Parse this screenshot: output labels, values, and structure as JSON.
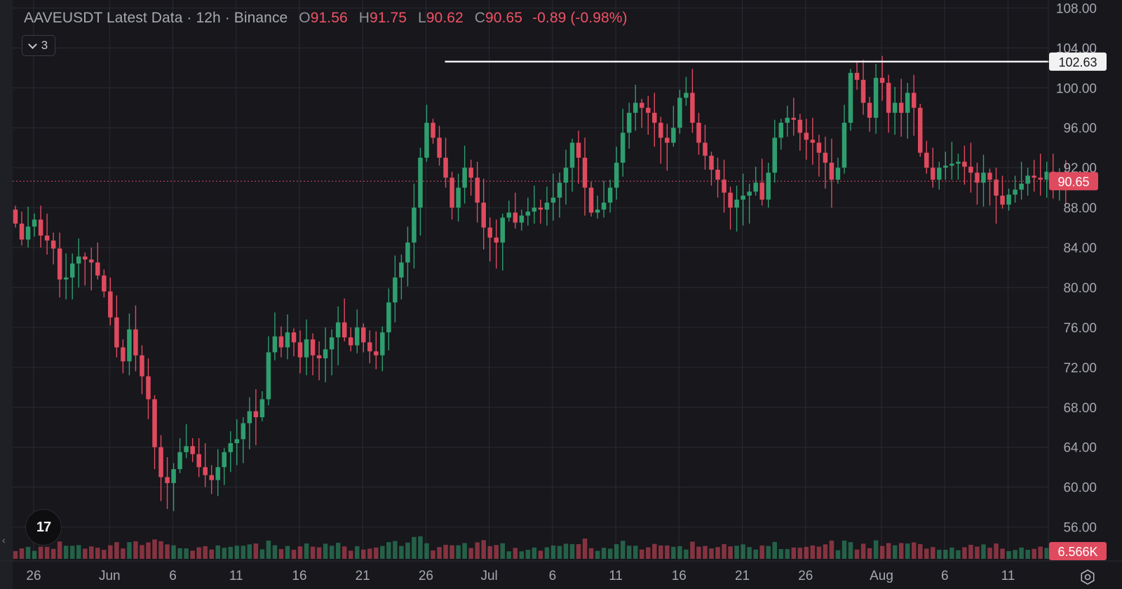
{
  "legend": {
    "symbol": "AAVEUSDT Latest Data · 12h · Binance",
    "o_label": "O",
    "open": "91.56",
    "h_label": "H",
    "high": "91.75",
    "l_label": "L",
    "low": "90.62",
    "c_label": "C",
    "close": "90.65",
    "change": "-0.89 (-0.98%)"
  },
  "indicators_toggle": {
    "count": "3"
  },
  "logo": {
    "text": "17"
  },
  "chart_data": {
    "type": "candlestick",
    "interval": "12h",
    "symbol": "AAVEUSDT",
    "exchange": "Binance",
    "ylim": [
      52.6,
      108.8
    ],
    "y_ticks": [
      "108.00",
      "104.00",
      "100.00",
      "96.00",
      "92.00",
      "88.00",
      "84.00",
      "80.00",
      "76.00",
      "72.00",
      "68.00",
      "64.00",
      "60.00",
      "56.00"
    ],
    "x_ticks": [
      {
        "label": "26",
        "day": 0
      },
      {
        "label": "Jun",
        "day": 6
      },
      {
        "label": "6",
        "day": 11
      },
      {
        "label": "11",
        "day": 16
      },
      {
        "label": "16",
        "day": 21
      },
      {
        "label": "21",
        "day": 26
      },
      {
        "label": "26",
        "day": 31
      },
      {
        "label": "Jul",
        "day": 36
      },
      {
        "label": "6",
        "day": 41
      },
      {
        "label": "11",
        "day": 46
      },
      {
        "label": "16",
        "day": 51
      },
      {
        "label": "21",
        "day": 56
      },
      {
        "label": "26",
        "day": 61
      },
      {
        "label": "Aug",
        "day": 67
      },
      {
        "label": "6",
        "day": 72
      },
      {
        "label": "11",
        "day": 77
      }
    ],
    "resistance_line": {
      "price": 102.63,
      "label": "102.63",
      "from_day": 32.5,
      "to_day": 80.8
    },
    "current_price": {
      "price": 90.65,
      "label": "90.65"
    },
    "volume_label": "6.566K",
    "up_color": "#2f9e6e",
    "down_color": "#e04a5e",
    "closes": [
      86.4,
      84.8,
      86.1,
      86.8,
      85.2,
      84.7,
      83.9,
      80.8,
      81.0,
      82.4,
      83.1,
      82.8,
      82.5,
      81.2,
      79.6,
      77.0,
      74.0,
      72.6,
      75.8,
      73.2,
      71.1,
      68.8,
      64.0,
      61.0,
      60.4,
      61.8,
      63.5,
      64.1,
      63.3,
      62.0,
      61.2,
      60.7,
      62.0,
      63.5,
      64.4,
      64.8,
      66.4,
      67.6,
      67.0,
      68.8,
      73.5,
      75.1,
      74.0,
      75.5,
      74.5,
      73.0,
      74.8,
      73.2,
      72.9,
      73.8,
      75.0,
      76.5,
      75.0,
      74.2,
      76.0,
      74.5,
      73.6,
      73.2,
      75.5,
      78.5,
      81.0,
      82.5,
      84.5,
      88.0,
      93.0,
      96.5,
      95.0,
      93.0,
      91.0,
      88.0,
      90.0,
      92.0,
      91.0,
      88.5,
      86.0,
      85.0,
      84.5,
      87.0,
      87.5,
      86.5,
      87.2,
      87.6,
      88.0,
      87.8,
      88.5,
      89.0,
      90.5,
      92.0,
      94.5,
      93.0,
      90.0,
      87.5,
      87.8,
      88.5,
      90.0,
      92.5,
      95.5,
      97.5,
      98.5,
      98.0,
      97.5,
      96.5,
      95.0,
      94.5,
      96.0,
      99.0,
      99.5,
      96.5,
      94.5,
      93.2,
      91.8,
      90.8,
      89.5,
      88.0,
      88.8,
      89.2,
      89.6,
      90.5,
      88.8,
      91.5,
      95.0,
      96.5,
      97.0,
      96.8,
      95.5,
      94.8,
      94.5,
      93.5,
      92.5,
      90.8,
      92.0,
      96.5,
      101.5,
      100.8,
      98.5,
      97.0,
      101.0,
      100.5,
      97.5,
      98.5,
      97.5,
      99.5,
      98.0,
      93.5,
      92.0,
      90.8,
      92.0,
      92.2,
      92.4,
      92.6,
      92.1,
      91.5,
      90.5,
      91.5,
      90.8,
      89.2,
      88.3,
      89.3,
      89.8,
      90.4,
      91.2,
      91.0,
      90.8,
      91.6,
      90.9,
      91.56,
      90.65
    ]
  }
}
